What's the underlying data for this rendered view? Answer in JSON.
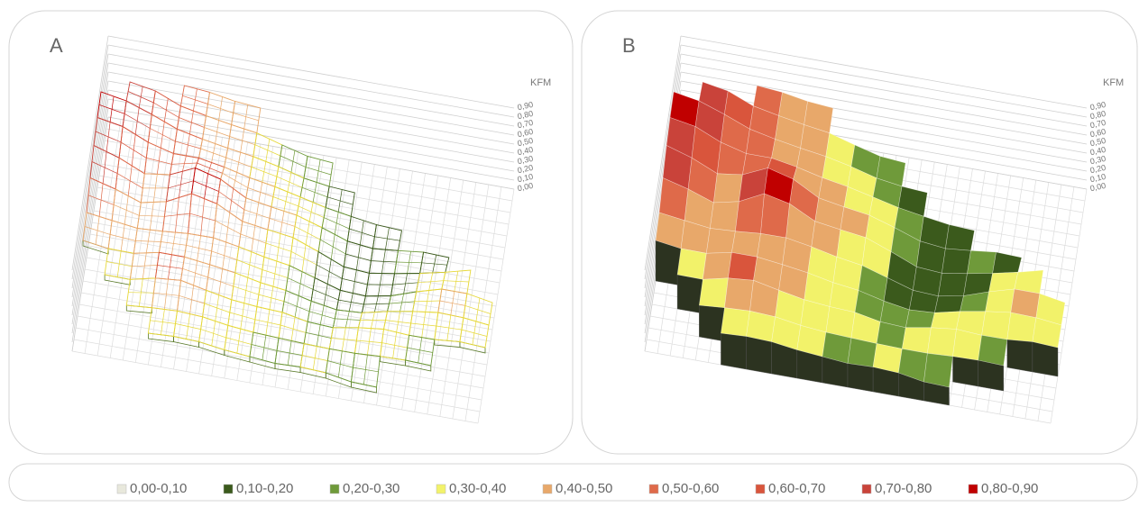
{
  "legend": [
    {
      "name": "0,00-0,10",
      "color": "#e8e8dc"
    },
    {
      "name": "0,10-0,20",
      "color": "#3b5a1c"
    },
    {
      "name": "0,20-0,30",
      "color": "#6f9a3a"
    },
    {
      "name": "0,30-0,40",
      "color": "#f2f26a"
    },
    {
      "name": "0,40-0,50",
      "color": "#e8a86a"
    },
    {
      "name": "0,50-0,60",
      "color": "#df6a4a"
    },
    {
      "name": "0,60-0,70",
      "color": "#d9553c"
    },
    {
      "name": "0,70-0,80",
      "color": "#c9433a"
    },
    {
      "name": "0,80-0,90",
      "color": "#c00000"
    }
  ],
  "chart_data": [
    {
      "type": "surface",
      "style": "wireframe",
      "title": "A",
      "z_label": "KFM",
      "zlim": [
        0,
        0.9
      ],
      "zticks": [
        {
          "value": 0,
          "label": "0,00"
        },
        {
          "value": 0.1,
          "label": "0,10"
        },
        {
          "value": 0.2,
          "label": "0,20"
        },
        {
          "value": 0.3,
          "label": "0,30"
        },
        {
          "value": 0.4,
          "label": "0,40"
        },
        {
          "value": 0.5,
          "label": "0,50"
        },
        {
          "value": 0.6,
          "label": "0,60"
        },
        {
          "value": 0.7,
          "label": "0,70"
        },
        {
          "value": 0.8,
          "label": "0,80"
        },
        {
          "value": 0.9,
          "label": "0,90"
        }
      ],
      "z": [
        [
          null,
          null,
          null,
          0.35,
          0.38,
          0.33,
          0.3,
          0.28,
          0.25,
          0.3,
          0.22,
          0.2,
          null,
          null,
          null,
          null
        ],
        [
          null,
          null,
          0.35,
          0.42,
          0.4,
          0.38,
          0.3,
          0.32,
          0.3,
          0.25,
          0.3,
          0.35,
          0.3,
          0.28,
          null,
          null
        ],
        [
          null,
          0.38,
          0.4,
          0.6,
          0.45,
          0.4,
          0.33,
          0.35,
          0.28,
          0.2,
          0.22,
          0.3,
          0.35,
          0.3,
          0.35,
          0.32
        ],
        [
          0.45,
          0.4,
          0.45,
          0.42,
          0.4,
          0.48,
          0.35,
          0.3,
          0.25,
          0.18,
          0.12,
          0.15,
          0.25,
          0.35,
          0.4,
          0.3
        ],
        [
          0.55,
          0.45,
          0.4,
          0.5,
          0.55,
          0.45,
          0.4,
          0.38,
          0.32,
          0.15,
          0.1,
          0.12,
          0.18,
          0.3,
          0.35,
          null
        ],
        [
          0.7,
          0.5,
          0.45,
          0.7,
          0.85,
          0.5,
          0.42,
          0.4,
          0.35,
          0.2,
          0.1,
          0.15,
          0.2,
          0.18,
          null,
          null
        ],
        [
          0.75,
          0.6,
          0.5,
          0.55,
          0.6,
          0.45,
          0.4,
          0.35,
          0.3,
          0.2,
          0.15,
          0.12,
          null,
          null,
          null,
          null
        ],
        [
          0.8,
          0.75,
          0.55,
          0.5,
          0.45,
          0.4,
          0.38,
          0.3,
          0.22,
          0.18,
          null,
          null,
          null,
          null,
          null,
          null
        ],
        [
          null,
          0.7,
          0.6,
          0.5,
          0.45,
          0.4,
          0.35,
          0.25,
          0.2,
          null,
          null,
          null,
          null,
          null,
          null,
          null
        ],
        [
          null,
          null,
          null,
          0.5,
          0.45,
          0.4,
          null,
          null,
          null,
          null,
          null,
          null,
          null,
          null,
          null,
          null
        ]
      ]
    },
    {
      "type": "surface",
      "style": "filled",
      "title": "B",
      "z_label": "KFM",
      "zlim": [
        0,
        0.9
      ],
      "zticks": [
        {
          "value": 0,
          "label": "0,00"
        },
        {
          "value": 0.1,
          "label": "0,10"
        },
        {
          "value": 0.2,
          "label": "0,20"
        },
        {
          "value": 0.3,
          "label": "0,30"
        },
        {
          "value": 0.4,
          "label": "0,40"
        },
        {
          "value": 0.5,
          "label": "0,50"
        },
        {
          "value": 0.6,
          "label": "0,60"
        },
        {
          "value": 0.7,
          "label": "0,70"
        },
        {
          "value": 0.8,
          "label": "0,80"
        },
        {
          "value": 0.9,
          "label": "0,90"
        }
      ],
      "z": [
        [
          null,
          null,
          null,
          0.35,
          0.38,
          0.33,
          0.3,
          0.28,
          0.25,
          0.3,
          0.22,
          0.2,
          null,
          null,
          null,
          null
        ],
        [
          null,
          null,
          0.35,
          0.42,
          0.4,
          0.38,
          0.3,
          0.32,
          0.3,
          0.25,
          0.3,
          0.35,
          0.3,
          0.28,
          null,
          null
        ],
        [
          null,
          0.38,
          0.4,
          0.6,
          0.45,
          0.4,
          0.33,
          0.35,
          0.28,
          0.2,
          0.22,
          0.3,
          0.35,
          0.3,
          0.35,
          0.32
        ],
        [
          0.45,
          0.4,
          0.45,
          0.42,
          0.4,
          0.48,
          0.35,
          0.3,
          0.25,
          0.18,
          0.12,
          0.15,
          0.25,
          0.35,
          0.4,
          0.3
        ],
        [
          0.55,
          0.45,
          0.4,
          0.5,
          0.55,
          0.45,
          0.4,
          0.38,
          0.32,
          0.15,
          0.1,
          0.12,
          0.18,
          0.3,
          0.35,
          null
        ],
        [
          0.7,
          0.5,
          0.45,
          0.7,
          0.85,
          0.5,
          0.42,
          0.4,
          0.35,
          0.2,
          0.1,
          0.15,
          0.2,
          0.18,
          null,
          null
        ],
        [
          0.75,
          0.6,
          0.5,
          0.55,
          0.6,
          0.45,
          0.4,
          0.35,
          0.3,
          0.2,
          0.15,
          0.12,
          null,
          null,
          null,
          null
        ],
        [
          0.8,
          0.75,
          0.55,
          0.5,
          0.45,
          0.4,
          0.38,
          0.3,
          0.22,
          0.18,
          null,
          null,
          null,
          null,
          null,
          null
        ],
        [
          null,
          0.7,
          0.6,
          0.5,
          0.45,
          0.4,
          0.35,
          0.25,
          0.2,
          null,
          null,
          null,
          null,
          null,
          null,
          null
        ],
        [
          null,
          null,
          null,
          0.5,
          0.45,
          0.4,
          null,
          null,
          null,
          null,
          null,
          null,
          null,
          null,
          null,
          null
        ]
      ]
    }
  ]
}
